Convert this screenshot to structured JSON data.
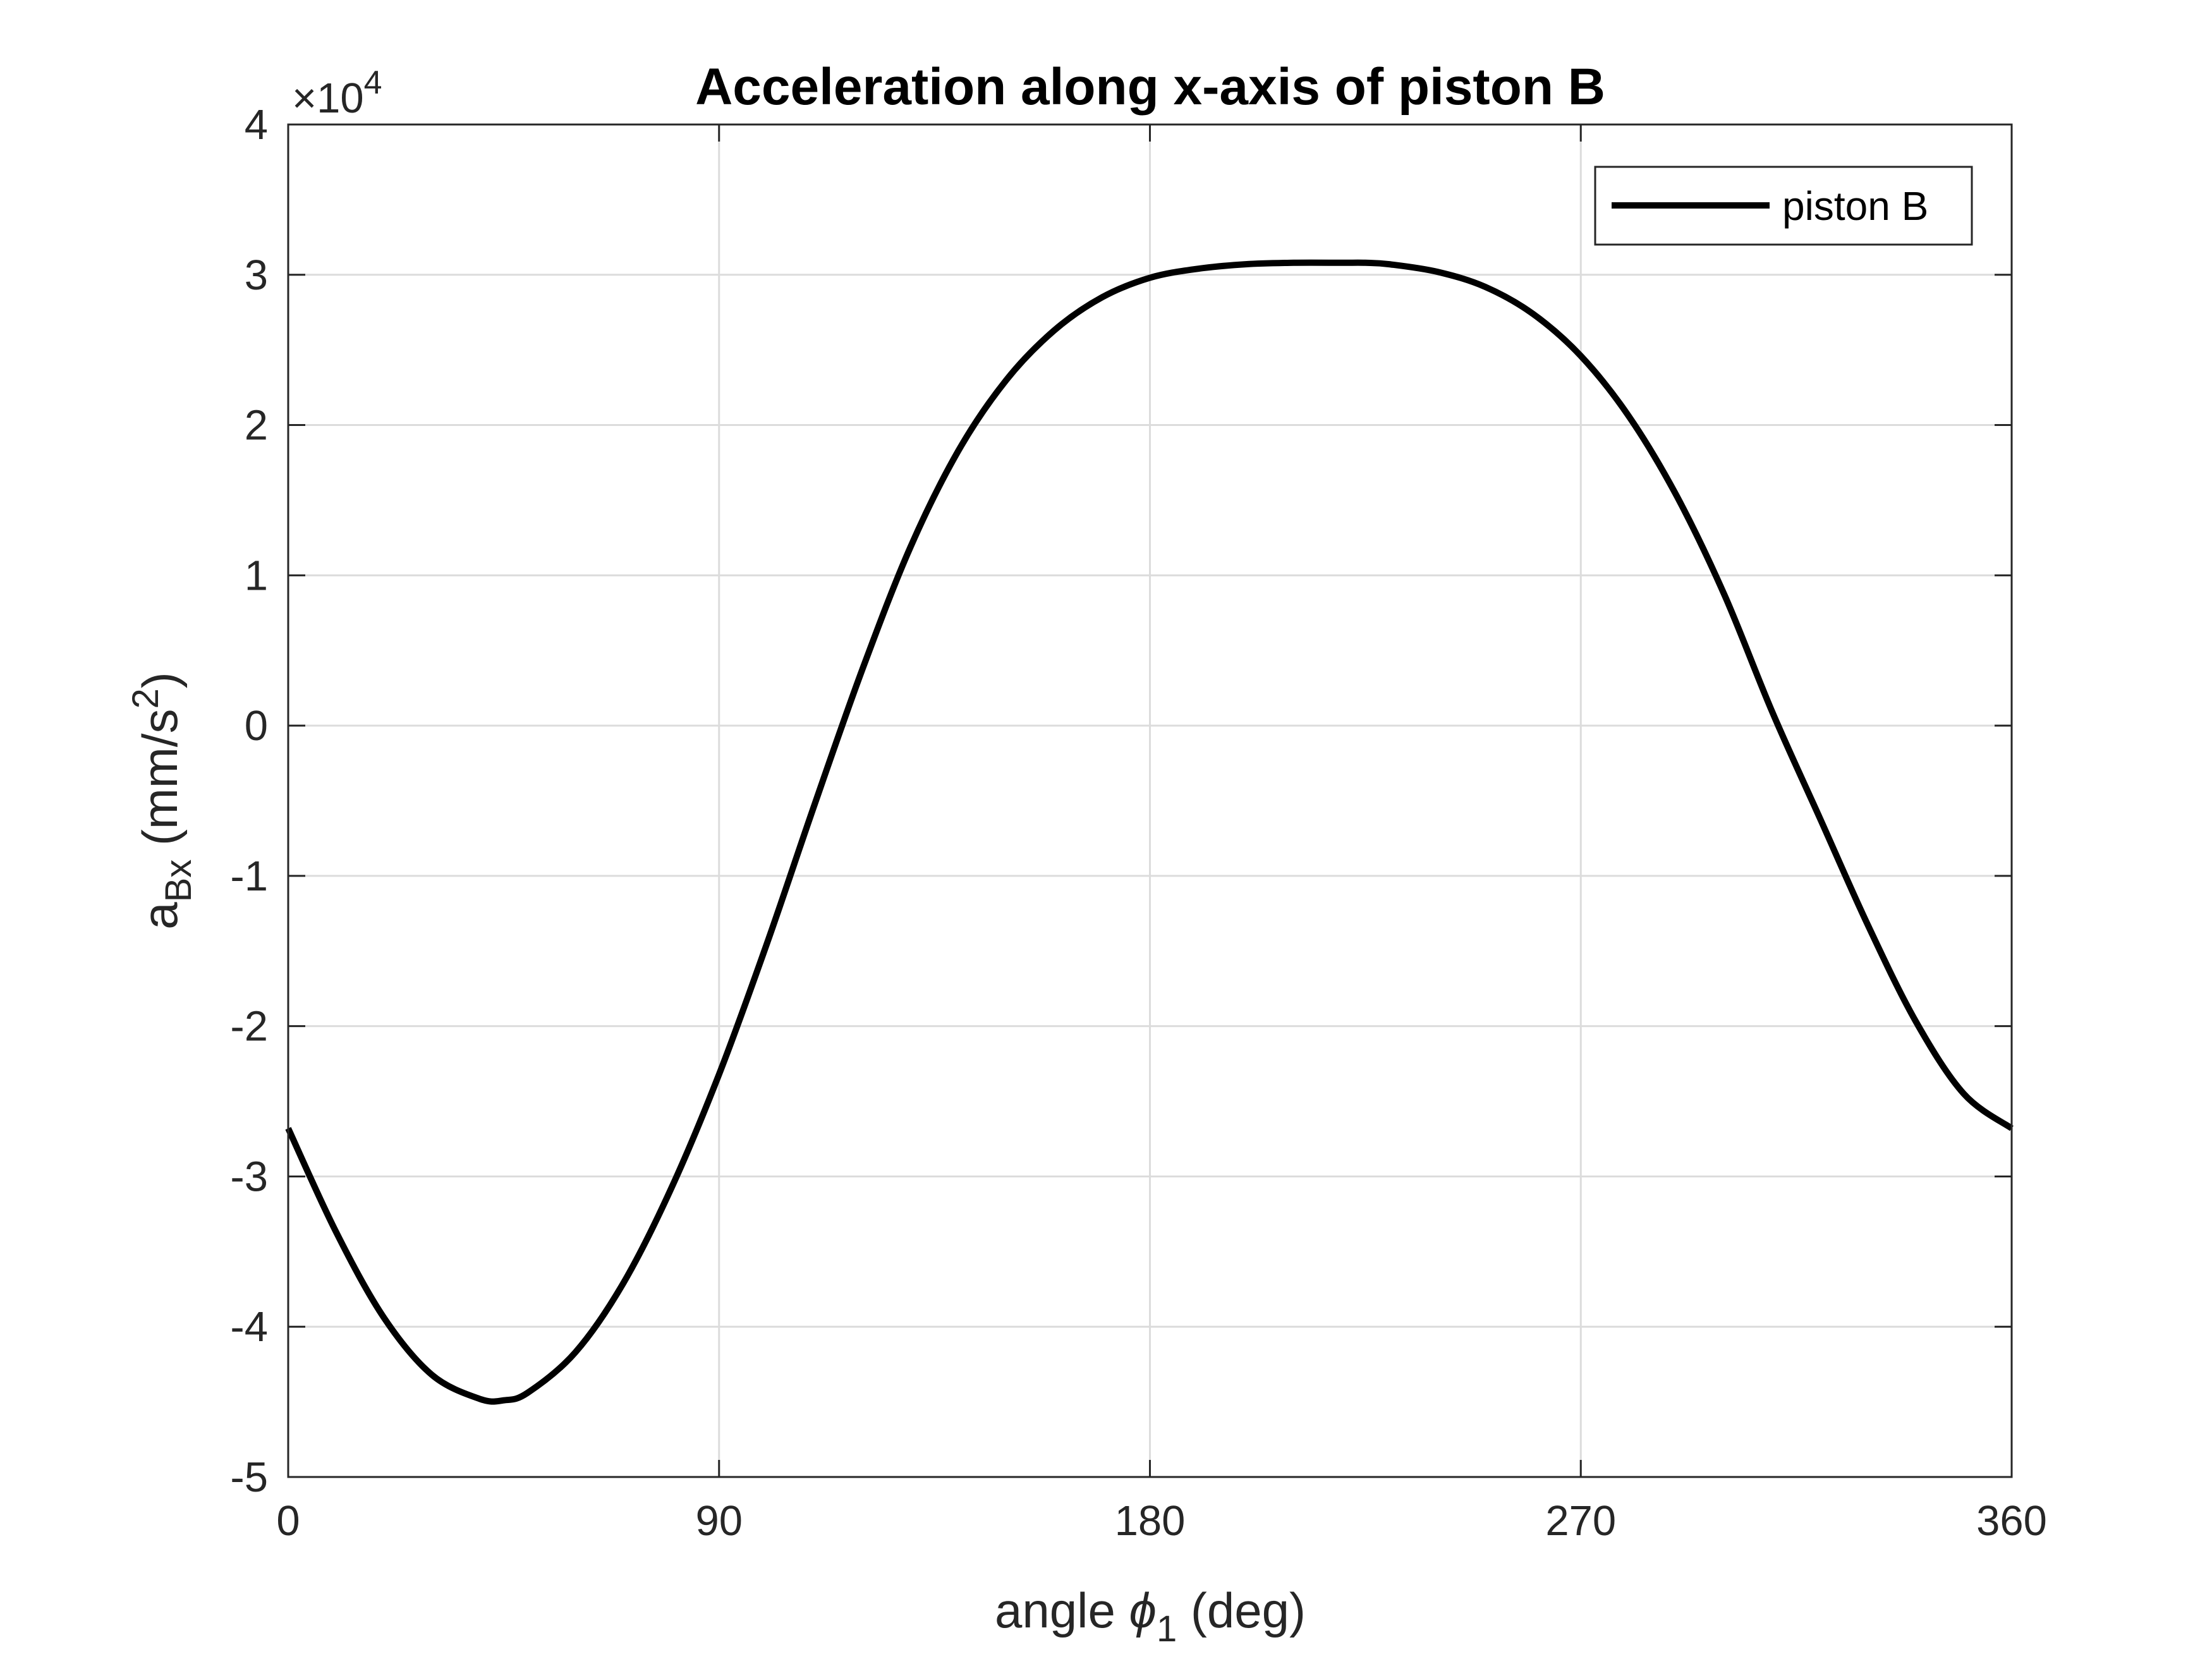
{
  "chart_data": {
    "type": "line",
    "title": "Acceleration along x-axis of piston B",
    "xlabel": {
      "text": "angle ",
      "symbol": "ϕ",
      "subscript": "1",
      "unit": " (deg)"
    },
    "ylabel": {
      "text": "a",
      "subscript": "Bx",
      "unit_open": " (mm/s",
      "superscript": "2",
      "unit_close": ")"
    },
    "y_exponent": {
      "prefix": "×10",
      "power": "4"
    },
    "xlim": [
      0,
      360
    ],
    "ylim": [
      -5,
      4
    ],
    "y_multiplier": 10000,
    "xticks": [
      0,
      90,
      180,
      270,
      360
    ],
    "xtick_labels": [
      "0",
      "90",
      "180",
      "270",
      "360"
    ],
    "yticks": [
      -5,
      -4,
      -3,
      -2,
      -1,
      0,
      1,
      2,
      3,
      4
    ],
    "ytick_labels": [
      "-5",
      "-4",
      "-3",
      "-2",
      "-1",
      "0",
      "1",
      "2",
      "3",
      "4"
    ],
    "grid": true,
    "legend_position": "top-right",
    "series": [
      {
        "name": "piston B",
        "color": "#000000",
        "x": [
          0,
          10,
          20,
          30,
          40,
          45,
          50,
          60,
          70,
          80,
          90,
          100,
          110,
          120,
          130,
          140,
          150,
          160,
          170,
          180,
          190,
          200,
          210,
          220,
          225,
          230,
          240,
          250,
          260,
          270,
          280,
          290,
          300,
          310,
          320,
          330,
          340,
          350,
          360
        ],
        "y": [
          -2.68,
          -3.37,
          -3.94,
          -4.32,
          -4.48,
          -4.49,
          -4.44,
          -4.17,
          -3.71,
          -3.08,
          -2.32,
          -1.45,
          -0.52,
          0.38,
          1.19,
          1.83,
          2.3,
          2.63,
          2.85,
          2.98,
          3.04,
          3.07,
          3.08,
          3.08,
          3.08,
          3.07,
          3.02,
          2.92,
          2.74,
          2.46,
          2.06,
          1.53,
          0.87,
          0.09,
          -0.62,
          -1.33,
          -1.97,
          -2.45,
          -2.68
        ]
      }
    ]
  }
}
